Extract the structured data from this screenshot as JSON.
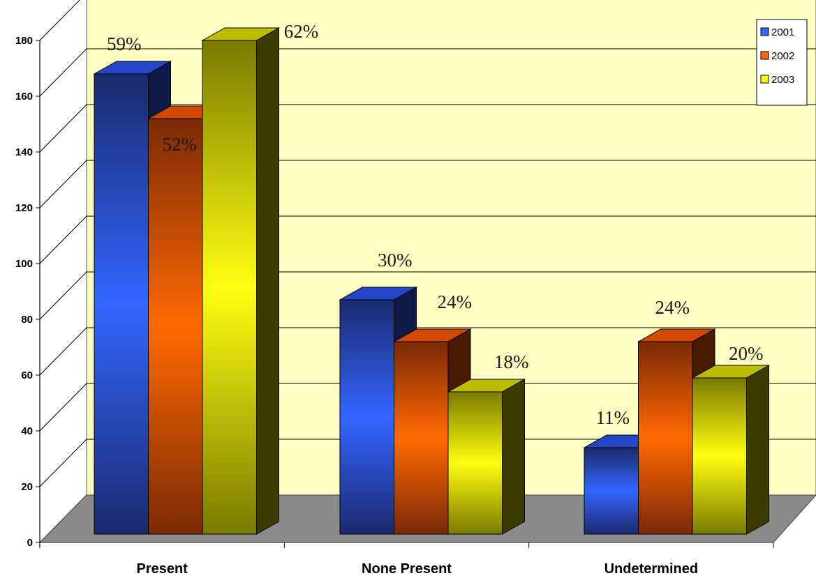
{
  "chart_data": {
    "type": "bar",
    "categories": [
      "Present",
      "None Present",
      "Undetermined"
    ],
    "series": [
      {
        "name": "2001",
        "values": [
          165,
          84,
          31
        ],
        "labels": [
          "59%",
          "30%",
          "11%"
        ]
      },
      {
        "name": "2002",
        "values": [
          149,
          69,
          69
        ],
        "labels": [
          "52%",
          "24%",
          "24%"
        ]
      },
      {
        "name": "2003",
        "values": [
          177,
          51,
          56
        ],
        "labels": [
          "62%",
          "18%",
          "20%"
        ]
      }
    ],
    "ylim": [
      0,
      180
    ],
    "yticks": [
      0,
      20,
      40,
      60,
      80,
      100,
      120,
      140,
      160,
      180
    ],
    "grid": true,
    "legend_position": "top-right",
    "three_d": true,
    "colors": {
      "wall": "#ffffc4",
      "floor": "#8a8a8a",
      "series": [
        {
          "dark": "#1a2a6c",
          "light": "#3366ff",
          "top": "#2447c8",
          "side": "#0f1a48"
        },
        {
          "dark": "#7a2a06",
          "light": "#ff6a00",
          "top": "#d24a00",
          "side": "#4a1a02"
        },
        {
          "dark": "#7a7a00",
          "light": "#ffff10",
          "top": "#bdbd00",
          "side": "#3c3c00"
        }
      ]
    }
  }
}
